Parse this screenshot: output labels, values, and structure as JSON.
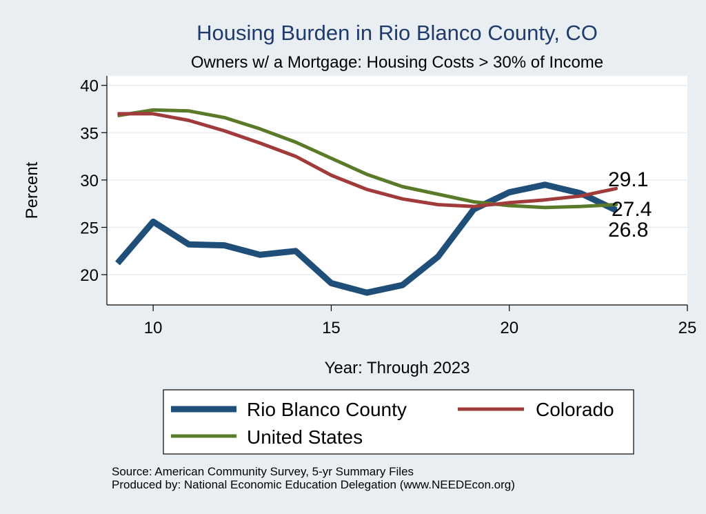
{
  "chart_data": {
    "type": "line",
    "title": "Housing Burden in Rio Blanco County, CO",
    "subtitle": "Owners w/ a Mortgage: Housing Costs > 30% of Income",
    "xlabel": "Year: Through 2023",
    "ylabel": "Percent",
    "xlim": [
      8.7,
      25
    ],
    "ylim": [
      16.8,
      41
    ],
    "xticks": [
      10,
      15,
      20,
      25
    ],
    "yticks": [
      20,
      25,
      30,
      35,
      40
    ],
    "x": [
      9,
      10,
      11,
      12,
      13,
      14,
      15,
      16,
      17,
      18,
      19,
      20,
      21,
      22,
      23
    ],
    "series": [
      {
        "name": "Rio Blanco County",
        "color": "#1f4e79",
        "values": [
          21.2,
          25.6,
          23.2,
          23.1,
          22.1,
          22.5,
          19.1,
          18.1,
          18.9,
          21.9,
          26.9,
          28.7,
          29.5,
          28.6,
          26.8
        ],
        "end_label": "26.8"
      },
      {
        "name": "Colorado",
        "color": "#a13b3b",
        "values": [
          37.0,
          37.0,
          36.3,
          35.2,
          33.9,
          32.5,
          30.5,
          29.0,
          28.0,
          27.4,
          27.2,
          27.6,
          27.9,
          28.3,
          29.1
        ],
        "end_label": "29.1"
      },
      {
        "name": "United States",
        "color": "#5a7a2a",
        "values": [
          36.8,
          37.4,
          37.3,
          36.6,
          35.4,
          34.0,
          32.3,
          30.6,
          29.3,
          28.5,
          27.7,
          27.3,
          27.1,
          27.2,
          27.4
        ],
        "end_label": "27.4"
      }
    ],
    "legend": {
      "placement": "bottom",
      "items": [
        {
          "label": "Rio Blanco County",
          "color": "#1f4e79"
        },
        {
          "label": "Colorado",
          "color": "#a13b3b"
        },
        {
          "label": "United States",
          "color": "#5a7a2a"
        }
      ]
    },
    "notes": [
      "Source: American Community Survey, 5-yr Summary Files",
      "Produced by: National Economic Education Delegation (www.NEEDEcon.org)"
    ]
  },
  "colors": {
    "background": "#e9eef3",
    "plot_background": "#ffffff",
    "title": "#1f3a6b",
    "grid": "#e8eef3"
  }
}
